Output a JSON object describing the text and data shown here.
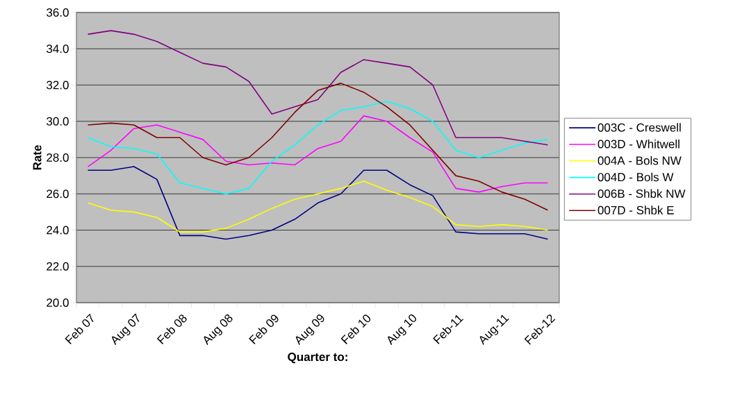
{
  "chart_data": {
    "type": "line",
    "xlabel": "Quarter to:",
    "ylabel": "Rate",
    "categories": [
      "Feb 07",
      null,
      "Aug 07",
      null,
      "Feb 08",
      null,
      "Aug 08",
      null,
      "Feb 09",
      null,
      "Aug 09",
      null,
      "Feb 10",
      null,
      "Aug 10",
      null,
      "Feb-11",
      null,
      "Aug-11",
      null,
      "Feb-12"
    ],
    "series": [
      {
        "name": "003C - Creswell",
        "color": "#000080",
        "values": [
          27.3,
          27.3,
          27.5,
          26.8,
          23.7,
          23.7,
          23.5,
          23.7,
          24.0,
          24.6,
          25.5,
          26.0,
          27.3,
          27.3,
          26.5,
          25.9,
          23.9,
          23.8,
          23.8,
          23.8,
          23.5
        ]
      },
      {
        "name": "003D - Whitwell",
        "color": "#ff00ff",
        "values": [
          27.5,
          28.4,
          29.6,
          29.8,
          29.4,
          29.0,
          27.8,
          27.6,
          27.7,
          27.6,
          28.5,
          28.9,
          30.3,
          30.0,
          29.1,
          28.3,
          26.3,
          26.1,
          26.4,
          26.6,
          26.6
        ]
      },
      {
        "name": "004A - Bols NW",
        "color": "#ffff00",
        "values": [
          25.5,
          25.1,
          25.0,
          24.7,
          23.9,
          23.9,
          24.1,
          24.6,
          25.2,
          25.7,
          26.0,
          26.3,
          26.7,
          26.2,
          25.8,
          25.3,
          24.3,
          24.2,
          24.3,
          24.2,
          24.0
        ]
      },
      {
        "name": "004D - Bols W",
        "color": "#00ffff",
        "values": [
          29.1,
          28.6,
          28.5,
          28.2,
          26.6,
          26.3,
          26.0,
          26.3,
          27.8,
          28.7,
          29.8,
          30.6,
          30.8,
          31.1,
          30.7,
          30.0,
          28.4,
          28.0,
          28.4,
          28.8,
          29.0
        ]
      },
      {
        "name": "006B - Shbk NW",
        "color": "#800080",
        "values": [
          34.8,
          35.0,
          34.8,
          34.4,
          33.8,
          33.2,
          33.0,
          32.2,
          30.4,
          30.8,
          31.2,
          32.7,
          33.4,
          33.2,
          33.0,
          32.0,
          29.1,
          29.1,
          29.1,
          28.9,
          28.7
        ]
      },
      {
        "name": "007D - Shbk E",
        "color": "#800000",
        "values": [
          29.8,
          29.9,
          29.8,
          29.1,
          29.1,
          28.0,
          27.6,
          28.0,
          29.1,
          30.5,
          31.7,
          32.1,
          31.6,
          30.8,
          29.8,
          28.4,
          27.0,
          26.7,
          26.1,
          25.7,
          25.1
        ]
      }
    ],
    "ylim": [
      20,
      36
    ],
    "yticks": [
      {
        "value": 20,
        "label": "20.0"
      },
      {
        "value": 22,
        "label": "22.0"
      },
      {
        "value": 24,
        "label": "24.0"
      },
      {
        "value": 26,
        "label": "26.0"
      },
      {
        "value": 28,
        "label": "28.0"
      },
      {
        "value": 30,
        "label": "30.0"
      },
      {
        "value": 32,
        "label": "32.0"
      },
      {
        "value": 34,
        "label": "34.0"
      },
      {
        "value": 36,
        "label": "36.0"
      }
    ],
    "grid": "y",
    "legend": "right",
    "marker": "none",
    "line_style": "solid"
  }
}
